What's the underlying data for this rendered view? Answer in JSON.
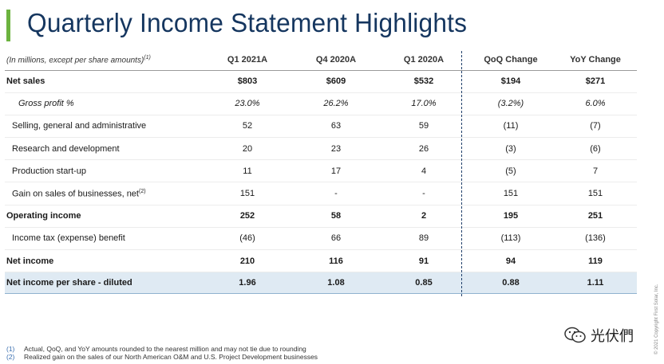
{
  "title": "Quarterly Income Statement Highlights",
  "table": {
    "header": {
      "label": "(In millions, except per share amounts)",
      "label_sup": "(1)",
      "cols": [
        "Q1 2021A",
        "Q4 2020A",
        "Q1 2020A",
        "QoQ Change",
        "YoY Change"
      ]
    },
    "rows": [
      {
        "label": "Net sales",
        "values": [
          "$803",
          "$609",
          "$532",
          "$194",
          "$271"
        ]
      },
      {
        "label": "Gross profit %",
        "values": [
          "23.0%",
          "26.2%",
          "17.0%",
          "(3.2%)",
          "6.0%"
        ]
      },
      {
        "label": "Selling, general and administrative",
        "values": [
          "52",
          "63",
          "59",
          "(11)",
          "(7)"
        ]
      },
      {
        "label": "Research and development",
        "values": [
          "20",
          "23",
          "26",
          "(3)",
          "(6)"
        ]
      },
      {
        "label": "Production start-up",
        "values": [
          "11",
          "17",
          "4",
          "(5)",
          "7"
        ]
      },
      {
        "label": "Gain on sales of businesses, net",
        "sup": "(2)",
        "values": [
          "151",
          "-",
          "-",
          "151",
          "151"
        ]
      },
      {
        "label": "Operating income",
        "values": [
          "252",
          "58",
          "2",
          "195",
          "251"
        ]
      },
      {
        "label": "Income tax (expense) benefit",
        "values": [
          "(46)",
          "66",
          "89",
          "(113)",
          "(136)"
        ]
      },
      {
        "label": "Net income",
        "values": [
          "210",
          "116",
          "91",
          "94",
          "119"
        ]
      },
      {
        "label": "Net income per share - diluted",
        "values": [
          "1.96",
          "1.08",
          "0.85",
          "0.88",
          "1.11"
        ]
      }
    ]
  },
  "footnotes": [
    {
      "num": "(1)",
      "text": "Actual, QoQ, and YoY amounts rounded to the nearest million and may not tie due to rounding"
    },
    {
      "num": "(2)",
      "text": "Realized gain on the sales of our North American O&M and U.S. Project Development businesses"
    }
  ],
  "copyright": "© 2021 Copyright First Solar, Inc.",
  "watermark": "光伏們",
  "colors": {
    "title": "#15365f",
    "accent_bar": "#6cb33f",
    "highlight_row": "#dfeaf3",
    "divider": "#1f3f6a"
  },
  "icons": [
    "wechat-official-account-icon"
  ]
}
